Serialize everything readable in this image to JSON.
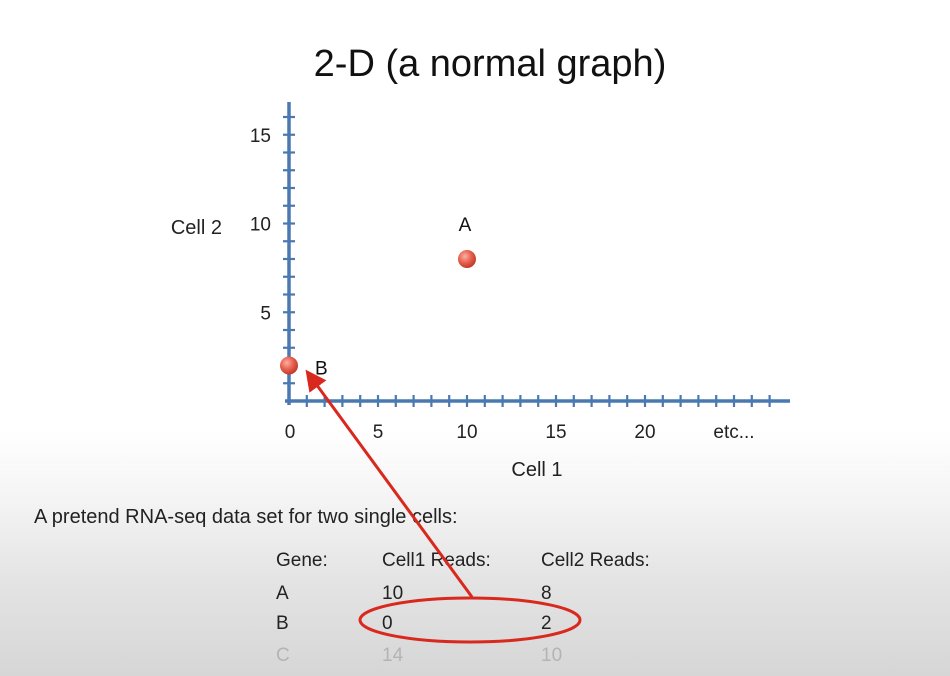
{
  "slide": {
    "title": "2-D (a normal graph)",
    "caption": "A pretend RNA-seq data set for two single cells:",
    "colors": {
      "axis": "#4a78b0",
      "point": "#e2574c",
      "annotation": "#d9281e"
    }
  },
  "chart_data": {
    "type": "scatter",
    "title": "2-D (a normal graph)",
    "xlabel": "Cell 1",
    "ylabel": "Cell 2",
    "xlim": [
      0,
      27
    ],
    "ylim": [
      0,
      17
    ],
    "x_ticks": [
      "0",
      "5",
      "10",
      "15",
      "20",
      "etc..."
    ],
    "y_ticks": [
      "5",
      "10",
      "15"
    ],
    "grid": false,
    "points": [
      {
        "label": "A",
        "x": 10,
        "y": 8
      },
      {
        "label": "B",
        "x": 0,
        "y": 2
      }
    ]
  },
  "table": {
    "headers": [
      "Gene:",
      "Cell1 Reads:",
      "Cell2 Reads:"
    ],
    "rows": [
      [
        "A",
        "10",
        "8"
      ],
      [
        "B",
        "0",
        "2"
      ],
      [
        "C",
        "14",
        "10"
      ]
    ]
  }
}
